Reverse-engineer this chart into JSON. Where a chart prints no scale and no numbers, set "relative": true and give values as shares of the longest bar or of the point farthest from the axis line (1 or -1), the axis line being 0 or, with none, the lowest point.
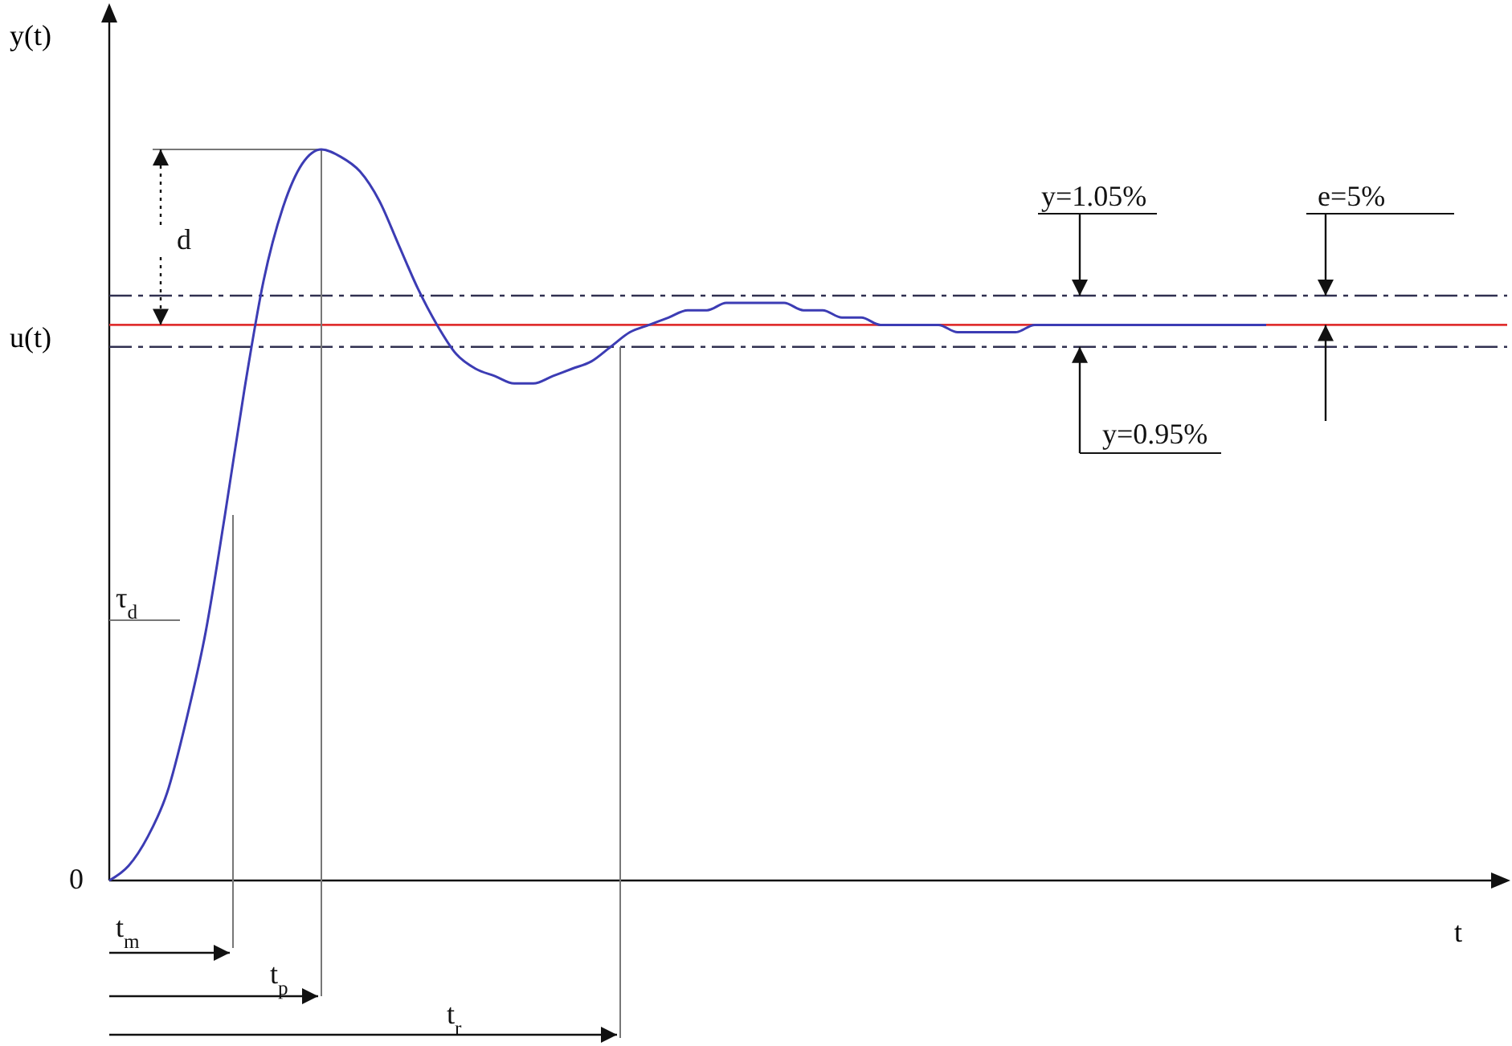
{
  "chart_data": {
    "type": "line",
    "relative": true,
    "xlabel": "t",
    "ylabel": "y(t)",
    "categories": [
      null,
      null,
      null,
      null,
      null,
      null,
      null,
      null,
      null,
      null,
      null,
      null,
      null,
      null,
      null,
      null,
      null,
      null,
      null,
      null,
      null,
      null,
      null,
      null,
      null,
      null,
      null,
      null,
      null,
      null,
      null,
      null,
      null,
      null,
      null,
      null,
      null,
      null,
      null,
      null,
      null,
      null,
      null,
      null,
      null,
      null,
      null,
      null,
      null,
      null,
      null,
      null,
      null,
      null,
      null,
      null,
      null,
      null,
      null,
      null,
      null,
      null,
      null,
      null,
      null,
      null,
      null,
      null,
      null,
      null,
      null,
      null,
      null
    ],
    "series": [
      {
        "color": "#3c3cb4",
        "values": [
          0,
          0.02,
          0.06,
          0.12,
          0.22,
          0.34,
          0.5,
          0.67,
          0.82,
          0.92,
          0.98,
          1,
          0.99,
          0.97,
          0.93,
          0.87,
          0.81,
          0.76,
          0.72,
          0.7,
          0.69,
          0.68,
          0.68,
          0.69,
          0.7,
          0.71,
          0.73,
          0.75,
          0.76,
          0.77,
          0.78,
          0.78,
          0.79,
          0.79,
          0.79,
          0.79,
          0.78,
          0.78,
          0.77,
          0.77,
          0.76,
          0.76,
          0.76,
          0.76,
          0.75,
          0.75,
          0.75,
          0.75,
          0.76,
          0.76,
          0.76,
          0.76,
          0.76,
          0.76,
          0.76,
          0.76,
          0.76,
          0.76,
          0.76,
          0.76,
          0.76,
          null,
          null,
          null,
          null,
          null,
          null,
          null,
          null,
          null,
          null,
          null,
          null
        ]
      }
    ],
    "ref_lines": [
      {
        "axis": "y",
        "value": 0.76,
        "label": "u(t)",
        "color": "#e03030",
        "line_style": "solid"
      },
      {
        "axis": "y",
        "value": 0.8,
        "color": "#303050",
        "line_style": "dashed"
      },
      {
        "axis": "y",
        "value": 0.73,
        "color": "#303050",
        "line_style": "dashed"
      }
    ],
    "annotations": [
      "d",
      "τ$_{d}$",
      "t$_{m}$",
      "t$_{p}$",
      "t$_{r}$",
      "y=1.05%",
      "y=0.95%",
      "e=5%",
      "0"
    ]
  }
}
